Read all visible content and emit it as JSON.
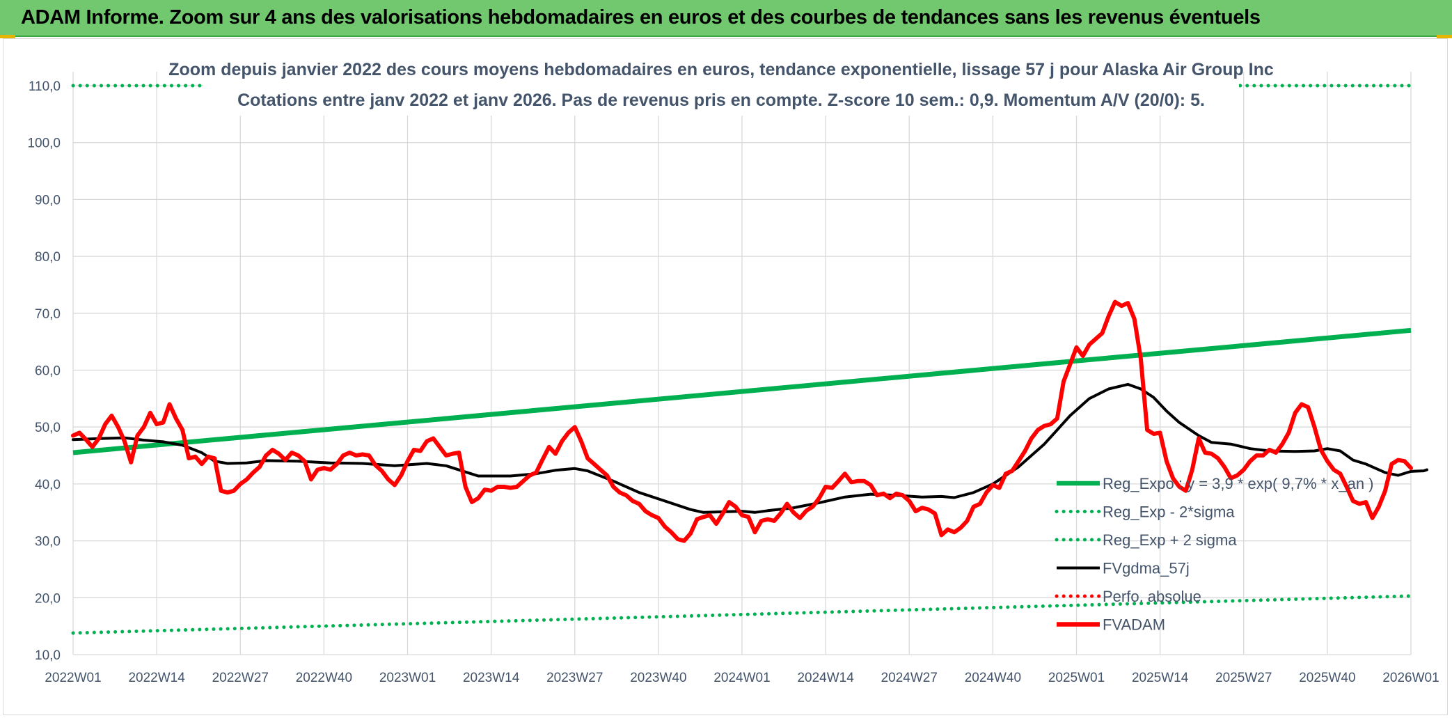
{
  "banner": {
    "title": "ADAM Informe. Zoom sur 4 ans des valorisations hebdomadaires en euros et des courbes de tendances sans les revenus éventuels",
    "bg_color": "#71c86e"
  },
  "chart_data": {
    "type": "line",
    "title": "Zoom depuis janvier 2022 des cours moyens hebdomadaires en euros, tendance exponentielle, lissage 57 j pour Alaska Air Group Inc",
    "subtitle": "Cotations entre janv 2022 et janv 2026. Pas de revenus pris en compte. Z-score 10 sem.: 0,9. Momentum A/V (20/0): 5.",
    "xlabel": "",
    "ylabel": "",
    "ylim": [
      10,
      110
    ],
    "y_ticks": [
      "10,0",
      "20,0",
      "30,0",
      "40,0",
      "50,0",
      "60,0",
      "70,0",
      "80,0",
      "90,0",
      "100,0",
      "110,0"
    ],
    "x_ticks": [
      "2022W01",
      "2022W14",
      "2022W27",
      "2022W40",
      "2023W01",
      "2023W14",
      "2023W27",
      "2023W40",
      "2024W01",
      "2024W14",
      "2024W27",
      "2024W40",
      "2025W01",
      "2025W14",
      "2025W27",
      "2025W40",
      "2026W01"
    ],
    "x_range_weeks": [
      0,
      208
    ],
    "grid": true,
    "legend_position": "bottom-right",
    "series": [
      {
        "name": "Reg_Expo : y = 3,9 * exp( 9,7% * x_an )",
        "color": "#00b050",
        "style": "solid",
        "points": [
          [
            0,
            45.5
          ],
          [
            208,
            67.0
          ]
        ]
      },
      {
        "name": "Reg_Exp - 2*sigma",
        "color": "#00b050",
        "style": "dotted",
        "points": [
          [
            0,
            13.8
          ],
          [
            208,
            20.3
          ]
        ]
      },
      {
        "name": "Reg_Exp + 2 sigma",
        "color": "#00b050",
        "style": "dotted",
        "points": [
          [
            0,
            110
          ],
          [
            20,
            110
          ],
          [
            183,
            110
          ],
          [
            208,
            110
          ]
        ]
      },
      {
        "name": "FVgdma_57j",
        "color": "#000000",
        "style": "solid",
        "points": [
          [
            0,
            47.8
          ],
          [
            5,
            48.0
          ],
          [
            8,
            48.1
          ],
          [
            11,
            47.7
          ],
          [
            14,
            47.4
          ],
          [
            17,
            46.8
          ],
          [
            20,
            45.5
          ],
          [
            22,
            44.0
          ],
          [
            24,
            43.6
          ],
          [
            27,
            43.7
          ],
          [
            30,
            44.1
          ],
          [
            35,
            44.0
          ],
          [
            40,
            43.7
          ],
          [
            45,
            43.6
          ],
          [
            50,
            43.2
          ],
          [
            55,
            43.6
          ],
          [
            58,
            43.2
          ],
          [
            61,
            42.1
          ],
          [
            63,
            41.4
          ],
          [
            68,
            41.4
          ],
          [
            72,
            41.8
          ],
          [
            75,
            42.4
          ],
          [
            78,
            42.7
          ],
          [
            80,
            42.3
          ],
          [
            84,
            40.5
          ],
          [
            88,
            38.5
          ],
          [
            92,
            37.0
          ],
          [
            96,
            35.5
          ],
          [
            98,
            35.0
          ],
          [
            101,
            35.1
          ],
          [
            104,
            35.2
          ],
          [
            106,
            35.0
          ],
          [
            108,
            35.3
          ],
          [
            112,
            35.8
          ],
          [
            116,
            36.7
          ],
          [
            120,
            37.7
          ],
          [
            124,
            38.2
          ],
          [
            128,
            38.0
          ],
          [
            132,
            37.7
          ],
          [
            135,
            37.8
          ],
          [
            137,
            37.6
          ],
          [
            140,
            38.5
          ],
          [
            143,
            40.0
          ],
          [
            147,
            43.0
          ],
          [
            151,
            47.0
          ],
          [
            155,
            52.0
          ],
          [
            158,
            55.0
          ],
          [
            161,
            56.7
          ],
          [
            164,
            57.5
          ],
          [
            166,
            56.7
          ],
          [
            168,
            55.2
          ],
          [
            170,
            52.8
          ],
          [
            172,
            50.8
          ],
          [
            175,
            48.5
          ],
          [
            177,
            47.3
          ],
          [
            180,
            47.0
          ],
          [
            183,
            46.2
          ],
          [
            186,
            45.8
          ],
          [
            190,
            45.7
          ],
          [
            193,
            45.8
          ],
          [
            195,
            46.2
          ],
          [
            197,
            45.8
          ],
          [
            199,
            44.2
          ],
          [
            201,
            43.5
          ],
          [
            204,
            42.0
          ],
          [
            206,
            41.5
          ],
          [
            208,
            42.2
          ],
          [
            210,
            42.3
          ],
          [
            211,
            42.5
          ]
        ]
      },
      {
        "name": "Perfo. absolue",
        "color": "#ff0000",
        "style": "dotted",
        "points": []
      },
      {
        "name": "FVADAM",
        "color": "#ff0000",
        "style": "solid",
        "points": [
          [
            0,
            48.5
          ],
          [
            1,
            49.0
          ],
          [
            2,
            47.8
          ],
          [
            3,
            46.5
          ],
          [
            4,
            48.0
          ],
          [
            5,
            50.5
          ],
          [
            6,
            52.0
          ],
          [
            7,
            50.0
          ],
          [
            8,
            47.5
          ],
          [
            9,
            43.8
          ],
          [
            10,
            48.5
          ],
          [
            11,
            50.0
          ],
          [
            12,
            52.5
          ],
          [
            13,
            50.5
          ],
          [
            14,
            50.8
          ],
          [
            15,
            54.0
          ],
          [
            16,
            51.5
          ],
          [
            17,
            49.5
          ],
          [
            18,
            44.5
          ],
          [
            19,
            44.8
          ],
          [
            20,
            43.5
          ],
          [
            21,
            44.8
          ],
          [
            22,
            44.5
          ],
          [
            23,
            38.8
          ],
          [
            24,
            38.5
          ],
          [
            25,
            38.8
          ],
          [
            26,
            40.0
          ],
          [
            27,
            40.8
          ],
          [
            28,
            42.0
          ],
          [
            29,
            43.0
          ],
          [
            30,
            45.0
          ],
          [
            31,
            46.0
          ],
          [
            32,
            45.3
          ],
          [
            33,
            44.2
          ],
          [
            34,
            45.5
          ],
          [
            35,
            45.0
          ],
          [
            36,
            44.0
          ],
          [
            37,
            40.8
          ],
          [
            38,
            42.5
          ],
          [
            39,
            42.8
          ],
          [
            40,
            42.5
          ],
          [
            41,
            43.5
          ],
          [
            42,
            45.0
          ],
          [
            43,
            45.5
          ],
          [
            44,
            45.0
          ],
          [
            45,
            45.2
          ],
          [
            46,
            45.0
          ],
          [
            47,
            43.3
          ],
          [
            48,
            42.3
          ],
          [
            49,
            40.8
          ],
          [
            50,
            39.8
          ],
          [
            51,
            41.5
          ],
          [
            52,
            44.0
          ],
          [
            53,
            46.0
          ],
          [
            54,
            45.8
          ],
          [
            55,
            47.5
          ],
          [
            56,
            48.0
          ],
          [
            57,
            46.5
          ],
          [
            58,
            45.0
          ],
          [
            59,
            45.3
          ],
          [
            60,
            45.5
          ],
          [
            61,
            39.5
          ],
          [
            62,
            36.8
          ],
          [
            63,
            37.5
          ],
          [
            64,
            39.0
          ],
          [
            65,
            38.8
          ],
          [
            66,
            39.5
          ],
          [
            67,
            39.5
          ],
          [
            68,
            39.3
          ],
          [
            69,
            39.5
          ],
          [
            70,
            40.5
          ],
          [
            71,
            41.5
          ],
          [
            72,
            42.0
          ],
          [
            73,
            44.3
          ],
          [
            74,
            46.5
          ],
          [
            75,
            45.3
          ],
          [
            76,
            47.5
          ],
          [
            77,
            49.0
          ],
          [
            78,
            50.0
          ],
          [
            79,
            47.5
          ],
          [
            80,
            44.5
          ],
          [
            81,
            43.5
          ],
          [
            82,
            42.5
          ],
          [
            83,
            41.5
          ],
          [
            84,
            39.5
          ],
          [
            85,
            38.5
          ],
          [
            86,
            38.0
          ],
          [
            87,
            37.0
          ],
          [
            88,
            36.5
          ],
          [
            89,
            35.2
          ],
          [
            90,
            34.5
          ],
          [
            91,
            34.0
          ],
          [
            92,
            32.5
          ],
          [
            93,
            31.5
          ],
          [
            94,
            30.3
          ],
          [
            95,
            30.0
          ],
          [
            96,
            31.3
          ],
          [
            97,
            33.8
          ],
          [
            98,
            34.2
          ],
          [
            99,
            34.5
          ],
          [
            100,
            33.0
          ],
          [
            101,
            34.8
          ],
          [
            102,
            36.8
          ],
          [
            103,
            36.0
          ],
          [
            104,
            34.5
          ],
          [
            105,
            34.2
          ],
          [
            106,
            31.5
          ],
          [
            107,
            33.5
          ],
          [
            108,
            33.8
          ],
          [
            109,
            33.5
          ],
          [
            110,
            34.8
          ],
          [
            111,
            36.5
          ],
          [
            112,
            35.0
          ],
          [
            113,
            34.0
          ],
          [
            114,
            35.3
          ],
          [
            115,
            36.0
          ],
          [
            116,
            37.5
          ],
          [
            117,
            39.5
          ],
          [
            118,
            39.3
          ],
          [
            119,
            40.5
          ],
          [
            120,
            41.8
          ],
          [
            121,
            40.3
          ],
          [
            122,
            40.5
          ],
          [
            123,
            40.5
          ],
          [
            124,
            39.8
          ],
          [
            125,
            38.0
          ],
          [
            126,
            38.3
          ],
          [
            127,
            37.5
          ],
          [
            128,
            38.3
          ],
          [
            129,
            38.0
          ],
          [
            130,
            37.0
          ],
          [
            131,
            35.2
          ],
          [
            132,
            35.8
          ],
          [
            133,
            35.5
          ],
          [
            134,
            34.8
          ],
          [
            135,
            31.0
          ],
          [
            136,
            32.0
          ],
          [
            137,
            31.5
          ],
          [
            138,
            32.3
          ],
          [
            139,
            33.5
          ],
          [
            140,
            36.0
          ],
          [
            141,
            36.5
          ],
          [
            142,
            38.5
          ],
          [
            143,
            39.8
          ],
          [
            144,
            39.3
          ],
          [
            145,
            41.8
          ],
          [
            146,
            42.3
          ],
          [
            147,
            44.0
          ],
          [
            148,
            45.8
          ],
          [
            149,
            48.0
          ],
          [
            150,
            49.5
          ],
          [
            151,
            50.2
          ],
          [
            152,
            50.5
          ],
          [
            153,
            51.5
          ],
          [
            154,
            58.0
          ],
          [
            155,
            61.0
          ],
          [
            156,
            64.0
          ],
          [
            157,
            62.5
          ],
          [
            158,
            64.5
          ],
          [
            159,
            65.5
          ],
          [
            160,
            66.5
          ],
          [
            161,
            69.5
          ],
          [
            162,
            72.0
          ],
          [
            163,
            71.3
          ],
          [
            164,
            71.8
          ],
          [
            165,
            69.0
          ],
          [
            166,
            62.0
          ],
          [
            167,
            49.5
          ],
          [
            168,
            48.8
          ],
          [
            169,
            49.0
          ],
          [
            170,
            44.0
          ],
          [
            171,
            41.0
          ],
          [
            172,
            39.5
          ],
          [
            173,
            38.8
          ],
          [
            174,
            42.5
          ],
          [
            175,
            48.0
          ],
          [
            176,
            45.5
          ],
          [
            177,
            45.3
          ],
          [
            178,
            44.5
          ],
          [
            179,
            43.0
          ],
          [
            180,
            41.0
          ],
          [
            181,
            41.5
          ],
          [
            182,
            42.5
          ],
          [
            183,
            44.0
          ],
          [
            184,
            45.0
          ],
          [
            185,
            45.0
          ],
          [
            186,
            46.0
          ],
          [
            187,
            45.5
          ],
          [
            188,
            47.0
          ],
          [
            189,
            49.0
          ],
          [
            190,
            52.5
          ],
          [
            191,
            54.0
          ],
          [
            192,
            53.5
          ],
          [
            193,
            50.0
          ],
          [
            194,
            46.0
          ],
          [
            195,
            44.0
          ],
          [
            196,
            42.5
          ],
          [
            197,
            41.8
          ],
          [
            198,
            39.5
          ],
          [
            199,
            37.0
          ],
          [
            200,
            36.5
          ],
          [
            201,
            36.8
          ],
          [
            202,
            34.0
          ],
          [
            203,
            36.0
          ],
          [
            204,
            38.8
          ],
          [
            205,
            43.5
          ],
          [
            206,
            44.2
          ],
          [
            207,
            44.0
          ],
          [
            208,
            42.8
          ]
        ]
      }
    ]
  }
}
